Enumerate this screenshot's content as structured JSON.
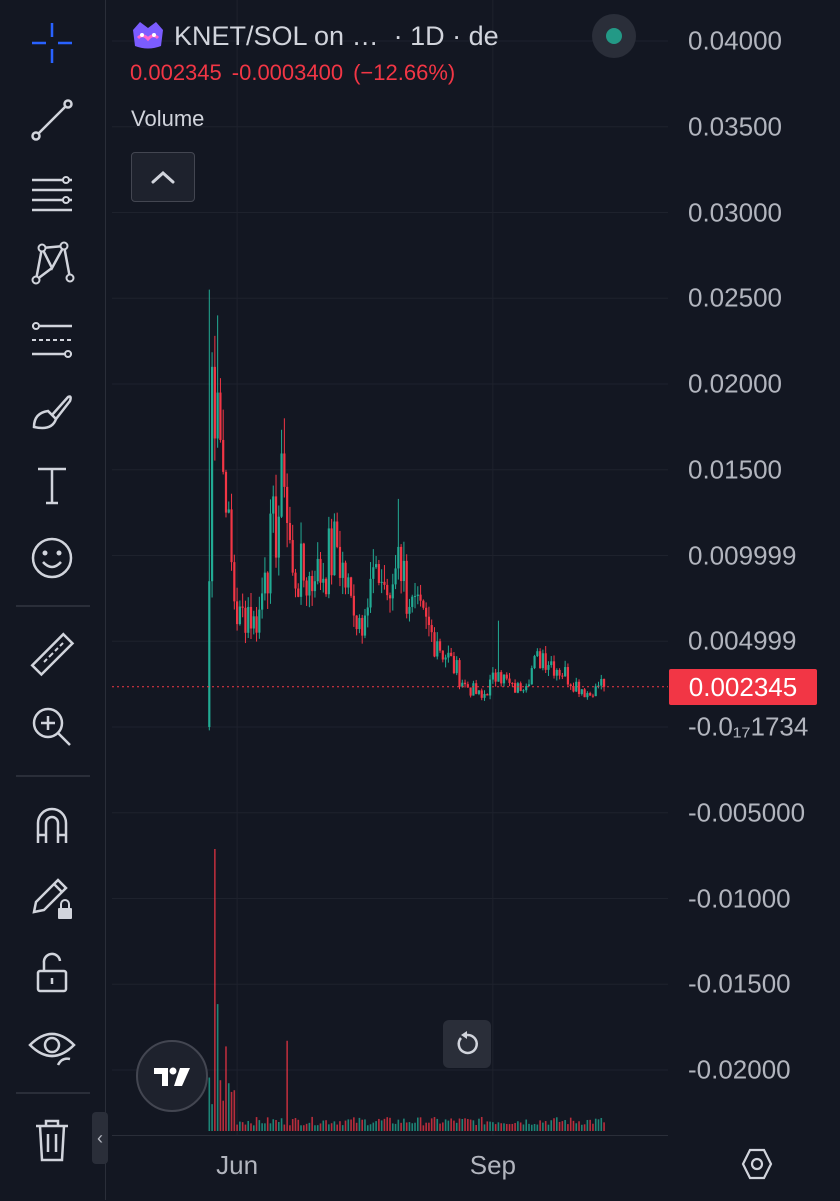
{
  "colors": {
    "background": "#131722",
    "up": "#22ab94",
    "down": "#f23645",
    "grid": "#1e222d",
    "text": "#d1d4dc",
    "axis_text": "#b2b5be",
    "toolbar_icon": "#d1d4dc",
    "crosshair_icon": "#2962ff"
  },
  "toolbar": {
    "tools": [
      {
        "name": "crosshair-icon"
      },
      {
        "name": "trend-line-icon"
      },
      {
        "name": "horizontal-lines-icon"
      },
      {
        "name": "pattern-icon"
      },
      {
        "name": "fib-retracement-icon"
      },
      {
        "name": "brush-icon"
      },
      {
        "name": "text-icon"
      },
      {
        "name": "emoji-icon"
      },
      {
        "name": "ruler-icon"
      },
      {
        "name": "zoom-in-icon"
      },
      {
        "name": "magnet-icon"
      },
      {
        "name": "lock-drawing-icon"
      },
      {
        "name": "unlock-icon"
      },
      {
        "name": "eye-icon"
      },
      {
        "name": "trash-icon"
      }
    ],
    "collapse_glyph": "‹"
  },
  "legend": {
    "symbol": "KNET/SOL on …",
    "interval": "· 1D · de",
    "price": "0.002345",
    "change": "-0.0003400",
    "change_pct": "(−12.66%)",
    "volume_label": "Volume",
    "collapse_glyph": "^"
  },
  "price_axis": {
    "ticks": [
      {
        "label": "0.04000",
        "value": 0.04
      },
      {
        "label": "0.03500",
        "value": 0.035
      },
      {
        "label": "0.03000",
        "value": 0.03
      },
      {
        "label": "0.02500",
        "value": 0.025
      },
      {
        "label": "0.02000",
        "value": 0.02
      },
      {
        "label": "0.01500",
        "value": 0.015
      },
      {
        "label": "0.009999",
        "value": 0.009999
      },
      {
        "label": "0.004999",
        "value": 0.004999
      },
      {
        "label": "-0.0₁₇1734",
        "value": 0
      },
      {
        "label": "-0.005000",
        "value": -0.005
      },
      {
        "label": "-0.01000",
        "value": -0.01
      },
      {
        "label": "-0.01500",
        "value": -0.015
      },
      {
        "label": "-0.02000",
        "value": -0.02
      }
    ],
    "last_price_label": "0.002345",
    "last_price_value": 0.002345
  },
  "time_axis": {
    "ticks": [
      {
        "label": "Jun",
        "day": 10
      },
      {
        "label": "Sep",
        "day": 102
      }
    ]
  },
  "chart_data": {
    "type": "candlestick",
    "interval": "1D",
    "ylim": [
      -0.0235,
      0.0415
    ],
    "x_range_days": [
      -35,
      165
    ],
    "grid": true,
    "series": [
      {
        "name": "KNET/SOL",
        "anchors": [
          {
            "day": 0,
            "high": 0.0255,
            "low": -0.0002,
            "close": 0.0085
          },
          {
            "day": 1,
            "close": 0.021
          },
          {
            "day": 3,
            "high": 0.024,
            "close": 0.0195
          },
          {
            "day": 6,
            "close": 0.0125
          },
          {
            "day": 10,
            "close": 0.006
          },
          {
            "day": 14,
            "close": 0.007
          },
          {
            "day": 17,
            "close": 0.0055
          },
          {
            "day": 20,
            "close": 0.009
          },
          {
            "day": 27,
            "high": 0.018,
            "close": 0.014
          },
          {
            "day": 30,
            "close": 0.009
          },
          {
            "day": 38,
            "close": 0.0085
          },
          {
            "day": 46,
            "high": 0.0125,
            "close": 0.0105
          },
          {
            "day": 52,
            "close": 0.0065
          },
          {
            "day": 56,
            "close": 0.0065
          },
          {
            "day": 60,
            "close": 0.0095
          },
          {
            "day": 65,
            "close": 0.0075
          },
          {
            "day": 68,
            "high": 0.0133,
            "close": 0.0105
          },
          {
            "day": 72,
            "close": 0.007
          },
          {
            "day": 82,
            "close": 0.005
          },
          {
            "day": 92,
            "close": 0.0025
          },
          {
            "day": 98,
            "close": 0.0017
          },
          {
            "day": 104,
            "high": 0.0062,
            "close": 0.0032
          },
          {
            "day": 110,
            "close": 0.002
          },
          {
            "day": 120,
            "close": 0.0043
          },
          {
            "day": 134,
            "close": 0.0022
          },
          {
            "day": 138,
            "close": 0.0018
          },
          {
            "day": 141,
            "close": 0.0028
          },
          {
            "day": 142,
            "close": 0.002345
          }
        ]
      },
      {
        "name": "Volume",
        "peaks": [
          {
            "day": 2,
            "value": 1.0
          },
          {
            "day": 3,
            "value": 0.45
          },
          {
            "day": 6,
            "value": 0.3
          },
          {
            "day": 28,
            "value": 0.32
          }
        ]
      }
    ],
    "last_price": 0.002345
  }
}
